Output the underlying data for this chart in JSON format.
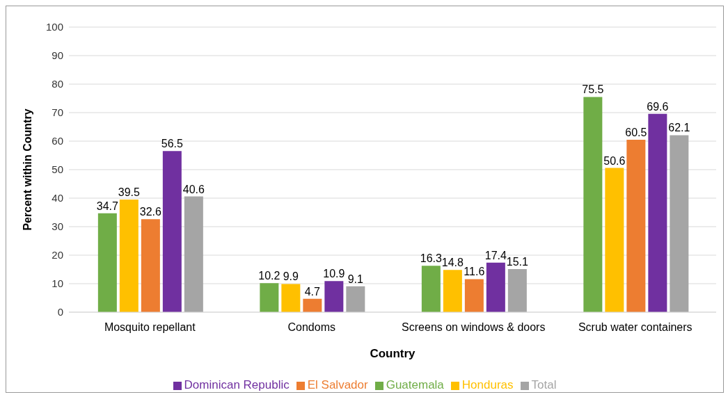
{
  "chart_data": {
    "type": "bar",
    "xlabel": "Country",
    "ylabel": "Percent within Country",
    "categories": [
      "Mosquito repellant",
      "Condoms",
      "Screens on windows & doors",
      "Scrub water containers"
    ],
    "series": [
      {
        "name": "Guatemala",
        "color": "#70ad47",
        "values": [
          34.7,
          10.2,
          16.3,
          75.5
        ]
      },
      {
        "name": "Honduras",
        "color": "#ffc000",
        "values": [
          39.5,
          9.9,
          14.8,
          50.6
        ]
      },
      {
        "name": "El Salvador",
        "color": "#ed7d31",
        "values": [
          32.6,
          4.7,
          11.6,
          60.5
        ]
      },
      {
        "name": "Dominican Republic",
        "color": "#7030a0",
        "values": [
          56.5,
          10.9,
          17.4,
          69.6
        ]
      },
      {
        "name": "Total",
        "color": "#a5a5a5",
        "values": [
          40.6,
          9.1,
          15.1,
          62.1
        ]
      }
    ],
    "ylim": [
      0,
      100
    ],
    "yticks": [
      0,
      10,
      20,
      30,
      40,
      50,
      60,
      70,
      80,
      90,
      100
    ],
    "grid": "y",
    "legend": "bottom",
    "data_labels": true
  }
}
